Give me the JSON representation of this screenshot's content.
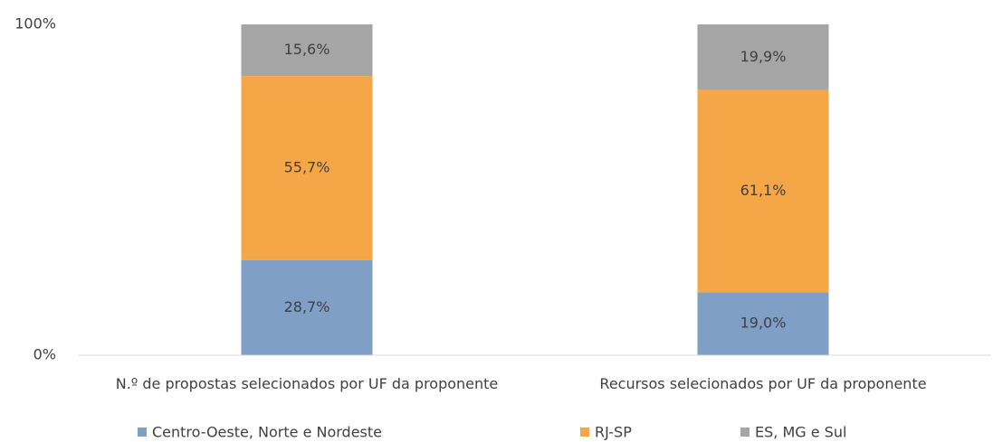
{
  "chart_data": {
    "type": "stacked_bar",
    "categories": [
      "N.º de propostas selecionados por UF da proponente",
      "Recursos selecionados por UF da proponente"
    ],
    "series": [
      {
        "name": "Centro-Oeste, Norte e Nordeste",
        "color": "#7f9fc6",
        "values": [
          28.7,
          19.0
        ],
        "value_labels": [
          "28,7%",
          "19,0%"
        ]
      },
      {
        "name": "RJ-SP",
        "color": "#f5a646",
        "values": [
          55.7,
          61.1
        ],
        "value_labels": [
          "55,7%",
          "61,1%"
        ]
      },
      {
        "name": "ES, MG e Sul",
        "color": "#a5a5a5",
        "values": [
          15.6,
          19.9
        ],
        "value_labels": [
          "15,6%",
          "19,9%"
        ]
      }
    ],
    "ylim": [
      0,
      100
    ],
    "yticks": [
      {
        "value": 0,
        "label": "0%"
      },
      {
        "value": 100,
        "label": "100%"
      }
    ]
  }
}
